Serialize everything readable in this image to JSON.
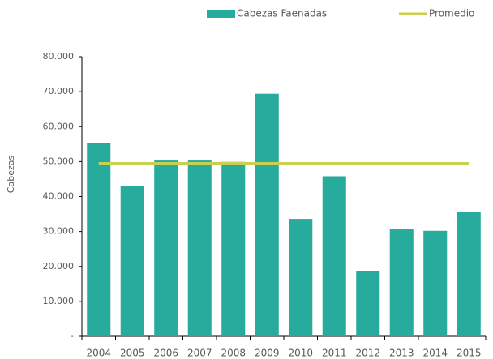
{
  "chart_data": {
    "type": "bar",
    "y_axis_label": "Cabezas",
    "categories": [
      "2004",
      "2005",
      "2006",
      "2007",
      "2008",
      "2009",
      "2010",
      "2011",
      "2012",
      "2013",
      "2014",
      "2015"
    ],
    "series": [
      {
        "name": "Cabezas Faenadas",
        "type": "bar",
        "color": "#26ab9c",
        "values": [
          55200,
          42900,
          50300,
          50300,
          49900,
          69400,
          33600,
          45800,
          18600,
          30600,
          30200,
          35500
        ]
      },
      {
        "name": "Promedio",
        "type": "line",
        "color": "#c9cf4e",
        "values": [
          49500,
          49500,
          49500,
          49500,
          49500,
          49500,
          49500,
          49500,
          49500,
          49500,
          49500,
          49500
        ]
      }
    ],
    "ylim": [
      0,
      80000
    ],
    "yticks": [
      {
        "value": 0,
        "label": "-"
      },
      {
        "value": 10000,
        "label": "10.000"
      },
      {
        "value": 20000,
        "label": "20.000"
      },
      {
        "value": 30000,
        "label": "30.000"
      },
      {
        "value": 40000,
        "label": "40.000"
      },
      {
        "value": 50000,
        "label": "50.000"
      },
      {
        "value": 60000,
        "label": "60.000"
      },
      {
        "value": 70000,
        "label": "70.000"
      },
      {
        "value": 80000,
        "label": "80.000"
      }
    ],
    "legend": "top"
  }
}
